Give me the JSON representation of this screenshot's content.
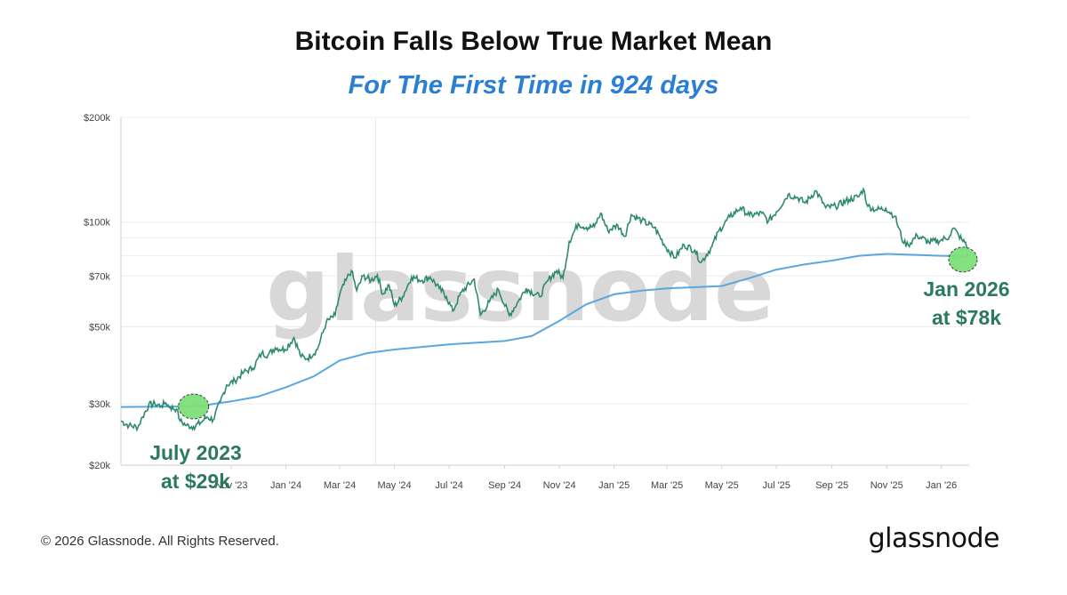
{
  "title": "Bitcoin Falls Below True Market Mean",
  "subtitle": "For The First Time in 924 days",
  "watermark": "glassnode",
  "footer": {
    "copyright": "© 2026 Glassnode. All Rights Reserved.",
    "logo": "glassnode"
  },
  "colors": {
    "price_line": "#2e8a6e",
    "mean_line": "#5aa7e0",
    "subtitle": "#2a7fd4",
    "annotation": "#2b7a5c",
    "highlight_fill": "#7ee07a"
  },
  "chart_data": {
    "type": "line",
    "y_scale": "log",
    "ylim": [
      20000,
      200000
    ],
    "y_ticks": [
      {
        "value": 200000,
        "label": "$200k"
      },
      {
        "value": 100000,
        "label": "$100k"
      },
      {
        "value": 70000,
        "label": "$70k"
      },
      {
        "value": 50000,
        "label": "$50k"
      },
      {
        "value": 30000,
        "label": "$30k"
      },
      {
        "value": 20000,
        "label": "$20k"
      }
    ],
    "xlim": [
      "2023-07-01",
      "2026-02-01"
    ],
    "x_ticks": [
      {
        "date": "2023-11-01",
        "label": "Nov '23"
      },
      {
        "date": "2024-01-01",
        "label": "Jan '24"
      },
      {
        "date": "2024-03-01",
        "label": "Mar '24"
      },
      {
        "date": "2024-05-01",
        "label": "May '24"
      },
      {
        "date": "2024-07-01",
        "label": "Jul '24"
      },
      {
        "date": "2024-09-01",
        "label": "Sep '24"
      },
      {
        "date": "2024-11-01",
        "label": "Nov '24"
      },
      {
        "date": "2025-01-01",
        "label": "Jan '25"
      },
      {
        "date": "2025-03-01",
        "label": "Mar '25"
      },
      {
        "date": "2025-05-01",
        "label": "May '25"
      },
      {
        "date": "2025-07-01",
        "label": "Jul '25"
      },
      {
        "date": "2025-09-01",
        "label": "Sep '25"
      },
      {
        "date": "2025-11-01",
        "label": "Nov '25"
      },
      {
        "date": "2026-01-01",
        "label": "Jan '26"
      }
    ],
    "series": [
      {
        "key": "price",
        "points": [
          [
            "2023-07-01",
            26800
          ],
          [
            "2023-07-10",
            26000
          ],
          [
            "2023-07-20",
            25700
          ],
          [
            "2023-07-25",
            27500
          ],
          [
            "2023-08-01",
            29800
          ],
          [
            "2023-08-08",
            30000
          ],
          [
            "2023-08-15",
            29600
          ],
          [
            "2023-08-20",
            30200
          ],
          [
            "2023-08-25",
            29300
          ],
          [
            "2023-09-01",
            29000
          ],
          [
            "2023-09-05",
            26800
          ],
          [
            "2023-09-12",
            26000
          ],
          [
            "2023-09-20",
            25800
          ],
          [
            "2023-09-28",
            26500
          ],
          [
            "2023-10-05",
            27500
          ],
          [
            "2023-10-12",
            27000
          ],
          [
            "2023-10-20",
            30500
          ],
          [
            "2023-10-27",
            34000
          ],
          [
            "2023-11-05",
            35000
          ],
          [
            "2023-11-15",
            37000
          ],
          [
            "2023-11-25",
            38000
          ],
          [
            "2023-12-05",
            42000
          ],
          [
            "2023-12-12",
            41500
          ],
          [
            "2023-12-20",
            43500
          ],
          [
            "2023-12-31",
            43000
          ],
          [
            "2024-01-10",
            46500
          ],
          [
            "2024-01-18",
            41000
          ],
          [
            "2024-01-25",
            40500
          ],
          [
            "2024-02-05",
            43000
          ],
          [
            "2024-02-15",
            51500
          ],
          [
            "2024-02-25",
            54000
          ],
          [
            "2024-03-01",
            62000
          ],
          [
            "2024-03-08",
            68000
          ],
          [
            "2024-03-14",
            72500
          ],
          [
            "2024-03-20",
            63500
          ],
          [
            "2024-03-27",
            70000
          ],
          [
            "2024-04-05",
            68000
          ],
          [
            "2024-04-12",
            70500
          ],
          [
            "2024-04-18",
            62000
          ],
          [
            "2024-04-25",
            66000
          ],
          [
            "2024-05-01",
            57500
          ],
          [
            "2024-05-10",
            61000
          ],
          [
            "2024-05-20",
            69500
          ],
          [
            "2024-06-01",
            68000
          ],
          [
            "2024-06-10",
            69500
          ],
          [
            "2024-06-20",
            64500
          ],
          [
            "2024-06-28",
            61000
          ],
          [
            "2024-07-05",
            55500
          ],
          [
            "2024-07-15",
            63000
          ],
          [
            "2024-07-29",
            68500
          ],
          [
            "2024-08-05",
            54000
          ],
          [
            "2024-08-15",
            59000
          ],
          [
            "2024-08-25",
            64000
          ],
          [
            "2024-09-06",
            53900
          ],
          [
            "2024-09-15",
            58500
          ],
          [
            "2024-09-25",
            64500
          ],
          [
            "2024-10-10",
            61000
          ],
          [
            "2024-10-20",
            68500
          ],
          [
            "2024-10-29",
            72500
          ],
          [
            "2024-11-05",
            69000
          ],
          [
            "2024-11-12",
            88000
          ],
          [
            "2024-11-22",
            99000
          ],
          [
            "2024-12-01",
            96500
          ],
          [
            "2024-12-10",
            97000
          ],
          [
            "2024-12-17",
            106000
          ],
          [
            "2024-12-25",
            94500
          ],
          [
            "2025-01-05",
            98000
          ],
          [
            "2025-01-13",
            91000
          ],
          [
            "2025-01-20",
            105000
          ],
          [
            "2025-02-01",
            101000
          ],
          [
            "2025-02-15",
            96500
          ],
          [
            "2025-02-28",
            84500
          ],
          [
            "2025-03-10",
            79000
          ],
          [
            "2025-03-20",
            86000
          ],
          [
            "2025-04-01",
            83000
          ],
          [
            "2025-04-08",
            76500
          ],
          [
            "2025-04-20",
            85000
          ],
          [
            "2025-04-28",
            94500
          ],
          [
            "2025-05-10",
            103500
          ],
          [
            "2025-05-22",
            110000
          ],
          [
            "2025-06-01",
            104500
          ],
          [
            "2025-06-15",
            106000
          ],
          [
            "2025-06-22",
            100500
          ],
          [
            "2025-07-01",
            107000
          ],
          [
            "2025-07-14",
            120000
          ],
          [
            "2025-07-25",
            117500
          ],
          [
            "2025-08-02",
            113500
          ],
          [
            "2025-08-14",
            123000
          ],
          [
            "2025-08-25",
            110000
          ],
          [
            "2025-09-05",
            111000
          ],
          [
            "2025-09-20",
            116000
          ],
          [
            "2025-10-01",
            118500
          ],
          [
            "2025-10-06",
            124500
          ],
          [
            "2025-10-11",
            111000
          ],
          [
            "2025-10-20",
            108500
          ],
          [
            "2025-10-31",
            109500
          ],
          [
            "2025-11-10",
            104000
          ],
          [
            "2025-11-20",
            87000
          ],
          [
            "2025-11-25",
            86000
          ],
          [
            "2025-12-05",
            91500
          ],
          [
            "2025-12-18",
            87500
          ],
          [
            "2025-12-31",
            88500
          ],
          [
            "2026-01-10",
            91000
          ],
          [
            "2026-01-14",
            96000
          ],
          [
            "2026-01-20",
            92000
          ],
          [
            "2026-01-25",
            88000
          ],
          [
            "2026-01-28",
            87500
          ],
          [
            "2026-01-31",
            79000
          ]
        ]
      },
      {
        "key": "true_market_mean",
        "points": [
          [
            "2023-07-01",
            29400
          ],
          [
            "2023-09-01",
            29500
          ],
          [
            "2023-10-01",
            29700
          ],
          [
            "2023-11-01",
            30500
          ],
          [
            "2023-12-01",
            31500
          ],
          [
            "2024-01-01",
            33500
          ],
          [
            "2024-02-01",
            36000
          ],
          [
            "2024-03-01",
            40000
          ],
          [
            "2024-04-01",
            42000
          ],
          [
            "2024-05-01",
            43000
          ],
          [
            "2024-07-01",
            44500
          ],
          [
            "2024-09-01",
            45500
          ],
          [
            "2024-10-01",
            47000
          ],
          [
            "2024-11-01",
            52000
          ],
          [
            "2024-12-01",
            58000
          ],
          [
            "2025-01-01",
            62000
          ],
          [
            "2025-02-01",
            63500
          ],
          [
            "2025-03-01",
            64500
          ],
          [
            "2025-05-01",
            65500
          ],
          [
            "2025-06-01",
            69000
          ],
          [
            "2025-07-01",
            73000
          ],
          [
            "2025-08-01",
            75500
          ],
          [
            "2025-09-01",
            77500
          ],
          [
            "2025-10-01",
            80000
          ],
          [
            "2025-11-01",
            81000
          ],
          [
            "2025-12-01",
            80500
          ],
          [
            "2026-01-01",
            80000
          ],
          [
            "2026-01-31",
            79800
          ]
        ]
      }
    ],
    "annotations": [
      {
        "text": "July 2023",
        "sub": "at $29k",
        "date": "2023-09-20",
        "value": 29500
      },
      {
        "text": "Jan 2026",
        "sub": "at $78k",
        "date": "2026-01-31",
        "value": 78000
      }
    ]
  }
}
